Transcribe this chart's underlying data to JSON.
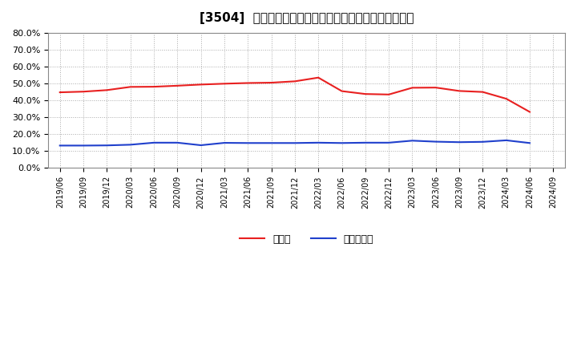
{
  "title": "[3504]  現頲金、有利子負債の総資産に対する比率の推移",
  "x_labels": [
    "2019/06",
    "2019/09",
    "2019/12",
    "2020/03",
    "2020/06",
    "2020/09",
    "2020/12",
    "2021/03",
    "2021/06",
    "2021/09",
    "2021/12",
    "2022/03",
    "2022/06",
    "2022/09",
    "2022/12",
    "2023/03",
    "2023/06",
    "2023/09",
    "2023/12",
    "2024/03",
    "2024/06",
    "2024/09"
  ],
  "cash": [
    0.448,
    0.452,
    0.461,
    0.48,
    0.481,
    0.487,
    0.494,
    0.499,
    0.503,
    0.505,
    0.513,
    0.535,
    0.455,
    0.438,
    0.435,
    0.475,
    0.476,
    0.456,
    0.45,
    0.41,
    0.332,
    null
  ],
  "debt": [
    0.133,
    0.133,
    0.134,
    0.138,
    0.15,
    0.15,
    0.135,
    0.149,
    0.148,
    0.148,
    0.148,
    0.15,
    0.148,
    0.15,
    0.15,
    0.162,
    0.156,
    0.153,
    0.155,
    0.164,
    0.148,
    null
  ],
  "cash_color": "#e82020",
  "debt_color": "#2040cc",
  "background_color": "#ffffff",
  "grid_color": "#aaaaaa",
  "ylim": [
    0.0,
    0.8
  ],
  "yticks": [
    0.0,
    0.1,
    0.2,
    0.3,
    0.4,
    0.5,
    0.6,
    0.7,
    0.8
  ],
  "legend_cash": "現頲金",
  "legend_debt": "有利子負債"
}
